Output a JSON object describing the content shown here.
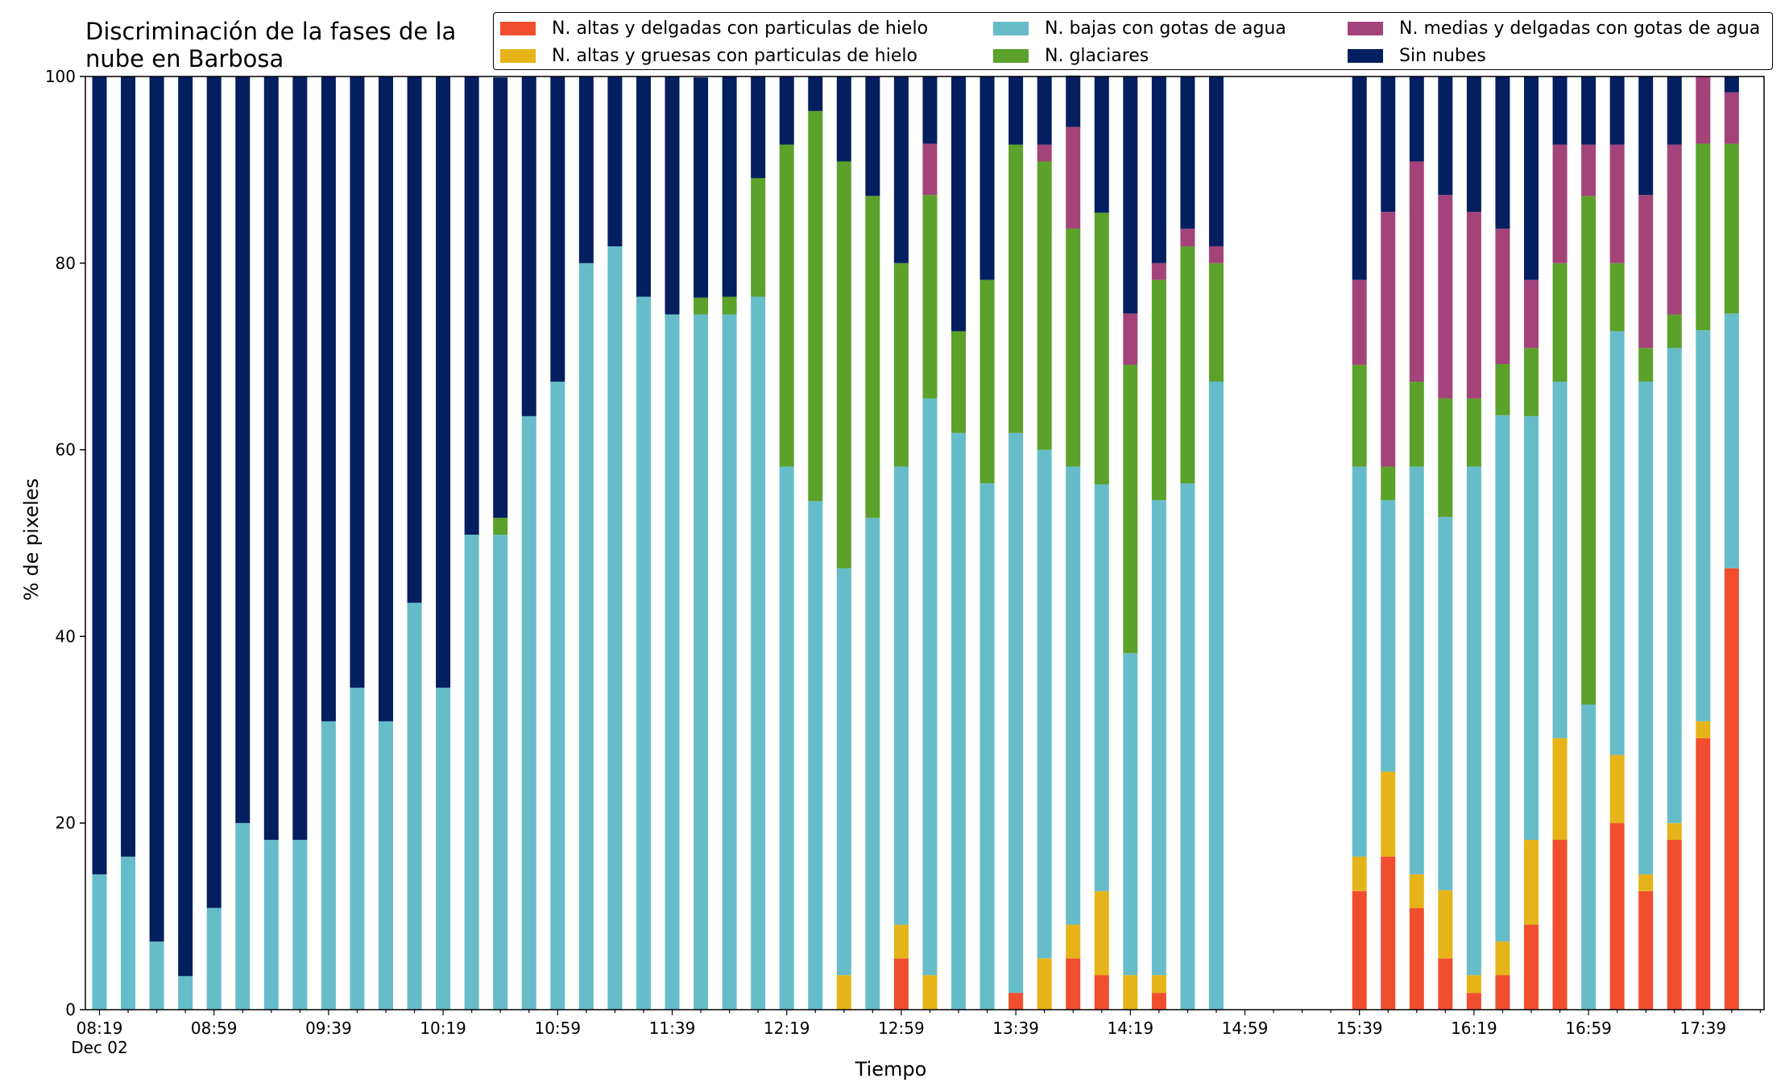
{
  "title": "Discriminación de la fases de la nube en Barbosa",
  "chart_data": {
    "type": "bar",
    "stacked": true,
    "xlabel": "Tiempo",
    "ylabel": "% de pixeles",
    "ylim": [
      0,
      100
    ],
    "yticks": [
      0,
      20,
      40,
      60,
      80,
      100
    ],
    "x_start": "08:19",
    "x_step_minutes": 10,
    "xtick_labels": [
      "08:19",
      "08:59",
      "09:39",
      "10:19",
      "10:59",
      "11:39",
      "12:19",
      "12:59",
      "13:39",
      "14:19",
      "14:59",
      "15:39",
      "16:19",
      "16:59",
      "17:39"
    ],
    "xtick_date": "Dec 02",
    "grid": false,
    "legend_position": "top",
    "categories": [
      "08:19",
      "08:29",
      "08:39",
      "08:49",
      "08:59",
      "09:09",
      "09:19",
      "09:29",
      "09:39",
      "09:49",
      "09:59",
      "10:09",
      "10:19",
      "10:29",
      "10:39",
      "10:49",
      "10:59",
      "11:09",
      "11:19",
      "11:29",
      "11:39",
      "11:49",
      "11:59",
      "12:09",
      "12:19",
      "12:29",
      "12:39",
      "12:49",
      "12:59",
      "13:09",
      "13:19",
      "13:29",
      "13:39",
      "13:49",
      "13:59",
      "14:09",
      "14:19",
      "14:29",
      "14:39",
      "14:49",
      "14:59",
      "15:09",
      "15:19",
      "15:29",
      "15:39",
      "15:49",
      "15:59",
      "16:09",
      "16:19",
      "16:29",
      "16:39",
      "16:49",
      "16:59",
      "17:09",
      "17:19",
      "17:29",
      "17:39",
      "17:49"
    ],
    "series": [
      {
        "name": "N. altas y delgadas con particulas de hielo",
        "color": "#f04e2f",
        "values": [
          0,
          0,
          0,
          0,
          0,
          0,
          0,
          0,
          0,
          0,
          0,
          0,
          0,
          0,
          0,
          0,
          0,
          0,
          0,
          0,
          0,
          0,
          0,
          0,
          0,
          0,
          0,
          0,
          5.5,
          0,
          0,
          0,
          1.8,
          0,
          5.5,
          3.7,
          0,
          1.8,
          0,
          0,
          null,
          null,
          null,
          null,
          12.7,
          16.4,
          10.9,
          5.5,
          1.8,
          3.7,
          9.1,
          18.2,
          0,
          20.0,
          12.7,
          18.2,
          29.1,
          47.3
        ]
      },
      {
        "name": "N. altas y gruesas con particulas de hielo",
        "color": "#e6b418",
        "values": [
          0,
          0,
          0,
          0,
          0,
          0,
          0,
          0,
          0,
          0,
          0,
          0,
          0,
          0,
          0,
          0,
          0,
          0,
          0,
          0,
          0,
          0,
          0,
          0,
          0,
          0,
          3.7,
          0,
          3.6,
          3.7,
          0,
          0,
          0,
          5.5,
          3.6,
          9.0,
          3.7,
          1.9,
          0,
          0,
          null,
          null,
          null,
          null,
          3.7,
          9.1,
          3.6,
          7.3,
          1.9,
          3.6,
          9.1,
          10.9,
          0,
          7.3,
          1.8,
          1.8,
          1.8,
          0
        ]
      },
      {
        "name": "N. bajas con gotas de agua",
        "color": "#66bdc9",
        "values": [
          14.5,
          16.4,
          7.3,
          3.6,
          10.9,
          20.0,
          18.2,
          18.2,
          30.9,
          34.5,
          30.9,
          43.6,
          34.5,
          50.9,
          50.9,
          63.6,
          67.3,
          80.0,
          81.8,
          76.4,
          74.5,
          74.5,
          74.5,
          76.4,
          58.2,
          54.5,
          43.6,
          52.7,
          49.1,
          61.8,
          61.8,
          56.4,
          60.0,
          54.5,
          49.1,
          43.6,
          34.5,
          50.9,
          56.4,
          67.3,
          null,
          null,
          null,
          null,
          41.8,
          29.1,
          43.7,
          40.0,
          54.5,
          56.4,
          45.4,
          38.2,
          32.7,
          45.4,
          52.8,
          50.9,
          41.9,
          27.3
        ]
      },
      {
        "name": "N. glaciares",
        "color": "#5ba12a",
        "values": [
          0,
          0,
          0,
          0,
          0,
          0,
          0,
          0,
          0,
          0,
          0,
          0,
          0,
          0,
          1.8,
          0,
          0,
          0,
          0,
          0,
          0,
          1.8,
          1.9,
          12.7,
          34.5,
          41.8,
          43.6,
          34.5,
          21.8,
          21.8,
          10.9,
          21.8,
          30.9,
          30.9,
          25.5,
          29.1,
          30.9,
          23.6,
          25.4,
          12.7,
          null,
          null,
          null,
          null,
          10.9,
          3.6,
          9.1,
          12.7,
          7.3,
          5.5,
          7.3,
          12.7,
          54.5,
          7.3,
          3.6,
          3.6,
          20.0,
          18.2
        ]
      },
      {
        "name": "N. medias y delgadas con gotas de agua",
        "color": "#a4437a",
        "values": [
          0,
          0,
          0,
          0,
          0,
          0,
          0,
          0,
          0,
          0,
          0,
          0,
          0,
          0,
          0,
          0,
          0,
          0,
          0,
          0,
          0,
          0,
          0,
          0,
          0,
          0,
          0,
          0,
          0,
          5.5,
          0,
          0,
          0,
          1.8,
          10.9,
          0,
          5.5,
          1.8,
          1.9,
          1.8,
          null,
          null,
          null,
          null,
          9.1,
          27.3,
          23.6,
          21.8,
          20.0,
          14.5,
          7.3,
          12.7,
          5.5,
          12.7,
          16.4,
          18.2,
          7.2,
          5.5
        ]
      },
      {
        "name": "Sin nubes",
        "color": "#031f60",
        "values": [
          85.5,
          83.6,
          92.7,
          96.4,
          89.1,
          80.0,
          81.8,
          81.8,
          69.1,
          65.5,
          69.1,
          56.4,
          65.5,
          49.1,
          47.2,
          36.4,
          32.7,
          20.0,
          18.2,
          23.6,
          25.5,
          23.6,
          23.6,
          10.9,
          7.3,
          3.7,
          9.1,
          12.8,
          20.0,
          7.2,
          27.3,
          21.8,
          7.3,
          7.3,
          5.5,
          14.6,
          25.4,
          20.0,
          16.3,
          18.2,
          null,
          null,
          null,
          null,
          21.8,
          14.5,
          9.1,
          12.7,
          14.5,
          16.3,
          21.8,
          7.3,
          7.3,
          7.3,
          12.7,
          7.3,
          0,
          1.7
        ]
      }
    ]
  }
}
